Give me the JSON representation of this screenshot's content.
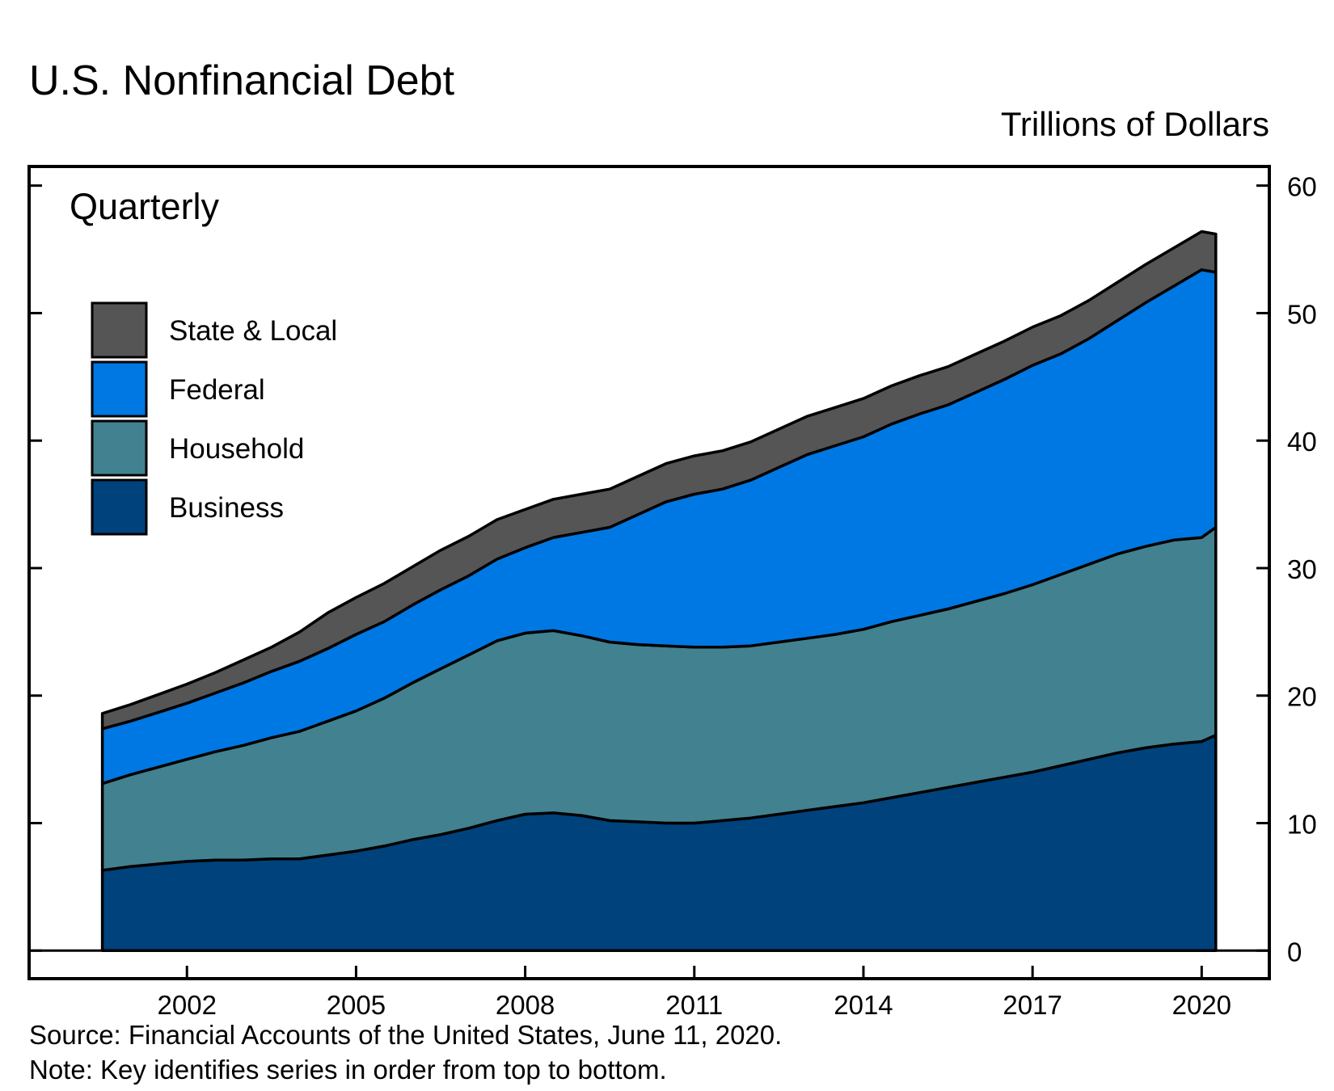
{
  "header": {
    "title": "U.S. Nonfinancial Debt",
    "units": "Trillions of Dollars",
    "frequency": "Quarterly"
  },
  "footer": {
    "source": "Source: Financial Accounts of the United States, June 11, 2020.",
    "note": "Note: Key identifies series in order from top to bottom."
  },
  "colors": {
    "state_local": "#555555",
    "federal": "#0078E3",
    "household": "#42818F",
    "business": "#00427C",
    "outline": "#000000"
  },
  "chart_data": {
    "type": "area",
    "stacked": true,
    "x": [
      2000.5,
      2001.0,
      2001.5,
      2002.0,
      2002.5,
      2003.0,
      2003.5,
      2004.0,
      2004.5,
      2005.0,
      2005.5,
      2006.0,
      2006.5,
      2007.0,
      2007.5,
      2008.0,
      2008.5,
      2009.0,
      2009.5,
      2010.0,
      2010.5,
      2011.0,
      2011.5,
      2012.0,
      2012.5,
      2013.0,
      2013.5,
      2014.0,
      2014.5,
      2015.0,
      2015.5,
      2016.0,
      2016.5,
      2017.0,
      2017.5,
      2018.0,
      2018.5,
      2019.0,
      2019.5,
      2020.0,
      2020.25
    ],
    "series": [
      {
        "name": "Business",
        "values": [
          6.3,
          6.6,
          6.8,
          7.0,
          7.1,
          7.1,
          7.2,
          7.2,
          7.5,
          7.8,
          8.2,
          8.7,
          9.1,
          9.6,
          10.2,
          10.7,
          10.8,
          10.6,
          10.2,
          10.1,
          10.0,
          10.0,
          10.2,
          10.4,
          10.7,
          11.0,
          11.3,
          11.6,
          12.0,
          12.4,
          12.8,
          13.2,
          13.6,
          14.0,
          14.5,
          15.0,
          15.5,
          15.9,
          16.2,
          16.4,
          16.9
        ]
      },
      {
        "name": "Household",
        "values": [
          6.8,
          7.2,
          7.6,
          8.0,
          8.5,
          9.0,
          9.5,
          10.0,
          10.5,
          11.0,
          11.6,
          12.3,
          13.0,
          13.6,
          14.1,
          14.2,
          14.3,
          14.1,
          14.0,
          13.9,
          13.9,
          13.8,
          13.6,
          13.5,
          13.5,
          13.5,
          13.5,
          13.6,
          13.8,
          13.9,
          14.0,
          14.2,
          14.4,
          14.7,
          15.0,
          15.3,
          15.6,
          15.8,
          16.0,
          16.0,
          16.3
        ]
      },
      {
        "name": "Federal",
        "values": [
          4.3,
          4.2,
          4.3,
          4.4,
          4.6,
          4.9,
          5.2,
          5.5,
          5.7,
          6.0,
          6.0,
          6.1,
          6.2,
          6.2,
          6.4,
          6.7,
          7.3,
          8.1,
          9.0,
          10.2,
          11.3,
          12.0,
          12.4,
          13.0,
          13.7,
          14.4,
          14.8,
          15.1,
          15.5,
          15.8,
          16.0,
          16.4,
          16.8,
          17.2,
          17.3,
          17.7,
          18.3,
          19.1,
          19.9,
          21.0,
          20.0
        ]
      },
      {
        "name": "State & Local",
        "values": [
          1.2,
          1.3,
          1.4,
          1.5,
          1.6,
          1.8,
          1.9,
          2.3,
          2.8,
          2.9,
          3.0,
          3.0,
          3.1,
          3.1,
          3.1,
          3.0,
          3.0,
          3.0,
          3.0,
          3.0,
          3.0,
          3.0,
          3.0,
          3.0,
          3.0,
          3.0,
          3.0,
          3.0,
          3.0,
          3.0,
          3.0,
          3.0,
          3.0,
          3.0,
          3.0,
          3.0,
          3.0,
          3.0,
          3.0,
          3.0,
          3.0
        ]
      }
    ],
    "legend": [
      "State & Local",
      "Federal",
      "Household",
      "Business"
    ],
    "legend_placement": "top-left",
    "xticks": [
      2002,
      2005,
      2008,
      2011,
      2014,
      2017,
      2020
    ],
    "yticks": [
      0,
      10,
      20,
      30,
      40,
      50,
      60
    ],
    "xlim": [
      1999.2,
      2021.2
    ],
    "ylim": [
      -2.2,
      61.5
    ],
    "y_axis_side": "right",
    "grid": false
  }
}
